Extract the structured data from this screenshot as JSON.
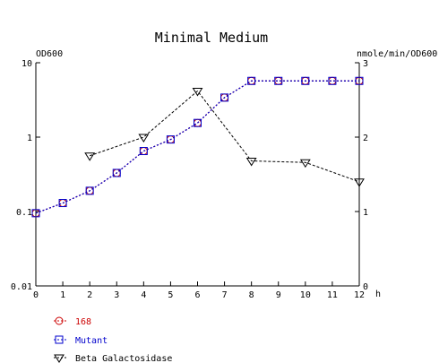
{
  "chart_data": {
    "type": "line",
    "title": "Minimal Medium",
    "y_left_label": "OD600",
    "y_right_label": "nmole/min/OD600",
    "x_unit_label": "h",
    "x_ticks": [
      "0",
      "1",
      "2",
      "3",
      "4",
      "5",
      "6",
      "7",
      "8",
      "9",
      "10",
      "11",
      "12"
    ],
    "xlim": [
      0,
      12
    ],
    "y_left_scale": "log",
    "y_left_ticks": [
      "10",
      "1",
      "0.1",
      "0.01"
    ],
    "y_left_tick_values": [
      10,
      1,
      0.1,
      0.01
    ],
    "ylim_left": [
      0.01,
      10
    ],
    "y_right_ticks": [
      "3",
      "2",
      "1",
      "0"
    ],
    "y_right_tick_values": [
      3,
      2,
      1,
      0
    ],
    "ylim_right": [
      0,
      3
    ],
    "grid": false,
    "legend_position": "bottom-left",
    "series": [
      {
        "name": "168",
        "axis": "left",
        "color": "#cc0000",
        "marker": "circle",
        "x": [
          0,
          1,
          2,
          3,
          4,
          5,
          6,
          7,
          8,
          9,
          10,
          11,
          12
        ],
        "y": [
          0.095,
          0.13,
          0.19,
          0.33,
          0.65,
          0.93,
          1.55,
          3.4,
          5.7,
          5.7,
          5.7,
          5.7,
          5.7
        ]
      },
      {
        "name": "Mutant",
        "axis": "left",
        "color": "#0000cc",
        "marker": "square",
        "x": [
          0,
          1,
          2,
          3,
          4,
          5,
          6,
          7,
          8,
          9,
          10,
          11,
          12
        ],
        "y": [
          0.095,
          0.13,
          0.19,
          0.33,
          0.65,
          0.93,
          1.55,
          3.4,
          5.7,
          5.7,
          5.7,
          5.7,
          5.7
        ]
      },
      {
        "name": "Beta Galactosidase",
        "axis": "right",
        "color": "#000000",
        "marker": "triangle-down",
        "x": [
          2,
          4,
          6,
          8,
          10,
          12
        ],
        "y": [
          1.75,
          2.0,
          2.62,
          1.68,
          1.66,
          1.4
        ]
      }
    ]
  }
}
